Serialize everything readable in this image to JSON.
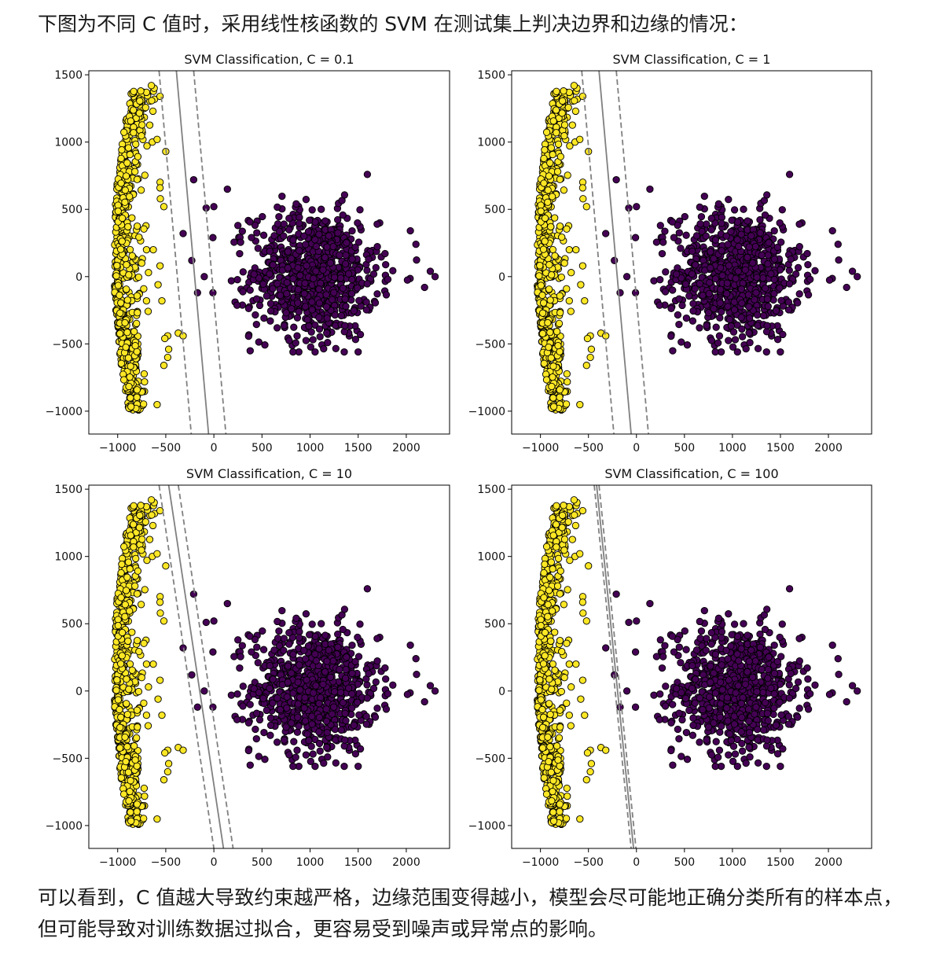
{
  "intro_text": "下图为不同 C 值时，采用线性核函数的 SVM 在测试集上判决边界和边缘的情况：",
  "outro_text": "可以看到，C 值越大导致约束越严格，边缘范围变得越小，模型会尽可能地正确分类所有的样本点，但可能导致对训练数据过拟合，更容易受到噪声或异常点的影响。",
  "colors": {
    "class_a": "#fde725",
    "class_b": "#440154",
    "edge": "#000000",
    "boundary": "#808080"
  },
  "chart_data": [
    {
      "type": "scatter",
      "title": "SVM Classification, C = 0.1",
      "xlim": [
        -1300,
        2450
      ],
      "ylim": [
        -1170,
        1530
      ],
      "xticks": [
        -1000,
        -500,
        0,
        500,
        1000,
        1500,
        2000
      ],
      "yticks": [
        -1000,
        -500,
        0,
        500,
        1000,
        1500
      ],
      "boundary": {
        "x_at_top": -390,
        "x_at_bottom": -55,
        "margin_dx": 180
      }
    },
    {
      "type": "scatter",
      "title": "SVM Classification, C = 1",
      "xlim": [
        -1300,
        2450
      ],
      "ylim": [
        -1170,
        1530
      ],
      "xticks": [
        -1000,
        -500,
        0,
        500,
        1000,
        1500,
        2000
      ],
      "yticks": [
        -1000,
        -500,
        0,
        500,
        1000,
        1500
      ],
      "boundary": {
        "x_at_top": -390,
        "x_at_bottom": -55,
        "margin_dx": 180
      }
    },
    {
      "type": "scatter",
      "title": "SVM Classification, C = 10",
      "xlim": [
        -1300,
        2450
      ],
      "ylim": [
        -1170,
        1530
      ],
      "xticks": [
        -1000,
        -500,
        0,
        500,
        1000,
        1500,
        2000
      ],
      "yticks": [
        -1000,
        -500,
        0,
        500,
        1000,
        1500
      ],
      "boundary": {
        "x_at_top": -470,
        "x_at_bottom": 100,
        "margin_dx": 100
      }
    },
    {
      "type": "scatter",
      "title": "SVM Classification, C = 100",
      "xlim": [
        -1300,
        2450
      ],
      "ylim": [
        -1170,
        1530
      ],
      "xticks": [
        -1000,
        -500,
        0,
        500,
        1000,
        1500,
        2000
      ],
      "yticks": [
        -1000,
        -500,
        0,
        500,
        1000,
        1500
      ],
      "boundary": {
        "x_at_top": -415,
        "x_at_bottom": -30,
        "margin_dx": 25
      }
    }
  ]
}
